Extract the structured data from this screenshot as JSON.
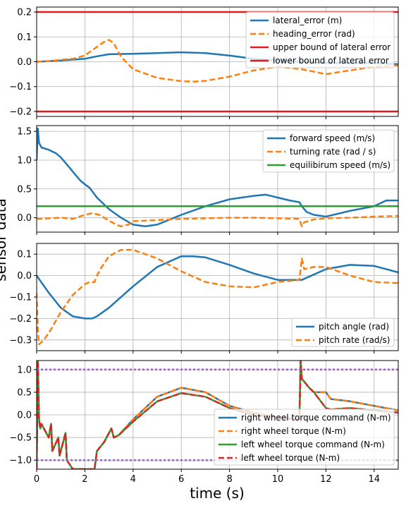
{
  "figure": {
    "xlabel": "time (s)",
    "ylabel": "sensor data"
  },
  "chart_data": [
    {
      "type": "line",
      "xlim": [
        0,
        15
      ],
      "ylim": [
        -0.22,
        0.22
      ],
      "xticks": [
        0,
        2,
        4,
        6,
        8,
        10,
        12,
        14
      ],
      "yticks": [
        -0.2,
        -0.1,
        0.0,
        0.1,
        0.2
      ],
      "ytick_labels": [
        "−0.2",
        "−0.1",
        "0.0",
        "0.1",
        "0.2"
      ],
      "grid": true,
      "legend_position": "top-right",
      "series": [
        {
          "name": "lateral_error (m)",
          "color": "#1f77b4",
          "dash": "solid",
          "x": [
            0,
            1,
            2,
            2.5,
            3,
            4,
            5,
            6,
            7,
            8,
            9,
            10,
            11,
            12,
            13,
            14,
            15
          ],
          "y": [
            0,
            0.005,
            0.012,
            0.022,
            0.03,
            0.032,
            0.035,
            0.038,
            0.035,
            0.025,
            0.012,
            0.005,
            0.0,
            -0.005,
            -0.005,
            -0.005,
            -0.01
          ]
        },
        {
          "name": "heading_error (rad)",
          "color": "#ff7f0e",
          "dash": "dashed",
          "x": [
            0,
            0.5,
            1,
            1.5,
            2,
            2.5,
            2.8,
            3,
            3.2,
            3.5,
            4,
            5,
            6,
            6.5,
            7,
            8,
            9,
            10,
            11,
            12,
            13,
            14,
            15
          ],
          "y": [
            0,
            0.002,
            0.008,
            0.012,
            0.025,
            0.06,
            0.08,
            0.088,
            0.075,
            0.02,
            -0.03,
            -0.065,
            -0.078,
            -0.08,
            -0.077,
            -0.06,
            -0.035,
            -0.02,
            -0.03,
            -0.05,
            -0.035,
            -0.02,
            -0.015
          ]
        },
        {
          "name": "upper bound of lateral error",
          "color": "#e31a1c",
          "dash": "solid",
          "x": [
            0,
            15
          ],
          "y": [
            0.2,
            0.2
          ]
        },
        {
          "name": "lower bound of lateral error",
          "color": "#e31a1c",
          "dash": "solid",
          "x": [
            0,
            15
          ],
          "y": [
            -0.2,
            -0.2
          ]
        }
      ]
    },
    {
      "type": "line",
      "xlim": [
        0,
        15
      ],
      "ylim": [
        -0.25,
        1.6
      ],
      "xticks": [
        0,
        2,
        4,
        6,
        8,
        10,
        12,
        14
      ],
      "yticks": [
        0.0,
        0.5,
        1.0,
        1.5
      ],
      "ytick_labels": [
        "0.0",
        "0.5",
        "1.0",
        "1.5"
      ],
      "grid": true,
      "legend_position": "top-right",
      "series": [
        {
          "name": "forward speed (m/s)",
          "color": "#1f77b4",
          "dash": "solid",
          "x": [
            0,
            0.05,
            0.1,
            0.2,
            0.5,
            0.8,
            1.0,
            1.3,
            1.5,
            1.8,
            2.0,
            2.2,
            2.5,
            3.0,
            3.5,
            4.0,
            4.5,
            5.0,
            6.0,
            7.0,
            8.0,
            9.0,
            9.5,
            10.0,
            10.5,
            10.9,
            11.0,
            11.2,
            11.5,
            12.0,
            13.0,
            14.0,
            14.5,
            15.0
          ],
          "y": [
            1.0,
            1.55,
            1.3,
            1.22,
            1.18,
            1.12,
            1.05,
            0.9,
            0.8,
            0.65,
            0.58,
            0.52,
            0.35,
            0.15,
            0.0,
            -0.12,
            -0.15,
            -0.12,
            0.05,
            0.2,
            0.32,
            0.38,
            0.4,
            0.35,
            0.3,
            0.27,
            0.2,
            0.1,
            0.05,
            0.02,
            0.12,
            0.2,
            0.3,
            0.3
          ]
        },
        {
          "name": "turning rate (rad / s)",
          "color": "#ff7f0e",
          "dash": "dashed",
          "x": [
            0,
            0.5,
            1.0,
            1.5,
            2.0,
            2.3,
            2.6,
            3.0,
            3.3,
            3.5,
            3.8,
            4.0,
            5.0,
            6.0,
            7.0,
            8.0,
            9.0,
            10.0,
            10.9,
            11.0,
            11.1,
            11.5,
            12.0,
            13.0,
            14.0,
            15.0
          ],
          "y": [
            -0.02,
            -0.01,
            0.0,
            -0.02,
            0.05,
            0.08,
            0.05,
            -0.05,
            -0.12,
            -0.15,
            -0.12,
            -0.06,
            -0.04,
            -0.02,
            -0.01,
            0.0,
            0.0,
            -0.01,
            -0.02,
            -0.15,
            -0.08,
            -0.03,
            -0.01,
            0.0,
            0.02,
            0.03
          ]
        },
        {
          "name": "equilibirum speed (m/s)",
          "color": "#2ca02c",
          "dash": "solid",
          "x": [
            0,
            15
          ],
          "y": [
            0.2,
            0.2
          ]
        }
      ]
    },
    {
      "type": "line",
      "xlim": [
        0,
        15
      ],
      "ylim": [
        -0.35,
        0.15
      ],
      "xticks": [
        0,
        2,
        4,
        6,
        8,
        10,
        12,
        14
      ],
      "yticks": [
        -0.3,
        -0.2,
        -0.1,
        0.0,
        0.1
      ],
      "ytick_labels": [
        "−0.3",
        "−0.2",
        "−0.1",
        "0.0",
        "0.1"
      ],
      "grid": true,
      "legend_position": "bottom-right",
      "series": [
        {
          "name": "pitch angle (rad)",
          "color": "#1f77b4",
          "dash": "solid",
          "x": [
            0,
            0.5,
            1.0,
            1.5,
            2.0,
            2.3,
            2.5,
            3.0,
            4.0,
            5.0,
            6.0,
            6.5,
            7.0,
            8.0,
            9.0,
            10.0,
            11.0,
            12.0,
            13.0,
            14.0,
            15.0
          ],
          "y": [
            0,
            -0.08,
            -0.15,
            -0.19,
            -0.2,
            -0.2,
            -0.19,
            -0.15,
            -0.05,
            0.04,
            0.09,
            0.09,
            0.085,
            0.05,
            0.01,
            -0.02,
            -0.02,
            0.03,
            0.05,
            0.045,
            0.015
          ]
        },
        {
          "name": "pitch rate (rad/s)",
          "color": "#ff7f0e",
          "dash": "dashed",
          "x": [
            0,
            0.05,
            0.1,
            0.3,
            0.6,
            1.0,
            1.5,
            2.0,
            2.2,
            2.4,
            2.5,
            2.7,
            3.0,
            3.5,
            4.0,
            5.0,
            6.0,
            7.0,
            8.0,
            9.0,
            10.0,
            10.9,
            11.0,
            11.1,
            11.5,
            12.0,
            13.0,
            14.0,
            15.0
          ],
          "y": [
            -0.08,
            -0.25,
            -0.32,
            -0.3,
            -0.25,
            -0.17,
            -0.09,
            -0.04,
            -0.03,
            -0.03,
            0.0,
            0.04,
            0.09,
            0.12,
            0.12,
            0.08,
            0.02,
            -0.03,
            -0.05,
            -0.055,
            -0.03,
            -0.02,
            0.08,
            0.03,
            0.04,
            0.04,
            0.0,
            -0.03,
            -0.035
          ]
        }
      ]
    },
    {
      "type": "line",
      "xlim": [
        0,
        15
      ],
      "ylim": [
        -1.2,
        1.2
      ],
      "xticks": [
        0,
        2,
        4,
        6,
        8,
        10,
        12,
        14
      ],
      "xtick_labels": [
        "0",
        "2",
        "4",
        "6",
        "8",
        "10",
        "12",
        "14"
      ],
      "yticks": [
        -1.0,
        -0.5,
        0.0,
        0.5,
        1.0
      ],
      "ytick_labels": [
        "−1.0",
        "−0.5",
        "0.0",
        "0.5",
        "1.0"
      ],
      "grid": true,
      "legend_position": "bottom-right",
      "series": [
        {
          "name": "right wheel torque command (N-m)",
          "color": "#1f77b4",
          "dash": "solid",
          "x": [
            0,
            0.05,
            0.1,
            0.15,
            0.2,
            0.5,
            0.6,
            0.65,
            0.9,
            0.95,
            1.2,
            1.25,
            1.5,
            1.6,
            2.0,
            2.2,
            2.4,
            2.5,
            2.8,
            3.1,
            3.2,
            3.4,
            4.0,
            5.0,
            6.0,
            7.0,
            8.0,
            9.0,
            10.0,
            10.9,
            10.95,
            11.0,
            11.3,
            11.5,
            12.0,
            12.2,
            13.0,
            14.0,
            15.0
          ],
          "y": [
            -1.2,
            1.2,
            -0.1,
            -0.3,
            -0.2,
            -0.5,
            -0.2,
            -0.8,
            -0.5,
            -0.9,
            -0.4,
            -1.0,
            -1.2,
            -1.2,
            -1.2,
            -1.2,
            -1.2,
            -0.8,
            -0.6,
            -0.3,
            -0.5,
            -0.45,
            -0.1,
            0.4,
            0.6,
            0.5,
            0.2,
            0.05,
            -0.05,
            -0.1,
            1.2,
            0.8,
            0.6,
            0.5,
            0.5,
            0.35,
            0.3,
            0.2,
            0.1
          ]
        },
        {
          "name": "right wheel torque (N-m)",
          "color": "#ff7f0e",
          "dash": "dashed",
          "x": [
            0,
            0.05,
            0.1,
            0.15,
            0.2,
            0.5,
            0.6,
            0.65,
            0.9,
            0.95,
            1.2,
            1.25,
            1.5,
            1.6,
            2.0,
            2.2,
            2.4,
            2.5,
            2.8,
            3.1,
            3.2,
            3.4,
            4.0,
            5.0,
            6.0,
            7.0,
            8.0,
            9.0,
            10.0,
            10.9,
            10.95,
            11.0,
            11.3,
            11.5,
            12.0,
            12.2,
            13.0,
            14.0,
            15.0
          ],
          "y": [
            -1.2,
            1.2,
            -0.1,
            -0.3,
            -0.2,
            -0.5,
            -0.2,
            -0.8,
            -0.5,
            -0.9,
            -0.4,
            -1.0,
            -1.2,
            -1.2,
            -1.2,
            -1.2,
            -1.2,
            -0.8,
            -0.6,
            -0.3,
            -0.5,
            -0.45,
            -0.1,
            0.4,
            0.6,
            0.5,
            0.2,
            0.05,
            -0.05,
            -0.1,
            1.2,
            0.8,
            0.6,
            0.5,
            0.5,
            0.35,
            0.3,
            0.2,
            0.1
          ]
        },
        {
          "name": "left wheel torque command (N-m)",
          "color": "#2ca02c",
          "dash": "solid",
          "x": [
            0,
            0.05,
            0.1,
            0.15,
            0.2,
            0.5,
            0.6,
            0.65,
            0.9,
            0.95,
            1.2,
            1.25,
            1.5,
            1.6,
            2.0,
            2.2,
            2.4,
            2.5,
            2.8,
            3.1,
            3.2,
            3.4,
            4.0,
            5.0,
            6.0,
            7.0,
            8.0,
            9.0,
            10.0,
            10.9,
            10.95,
            11.0,
            11.3,
            11.5,
            12.0,
            12.2,
            13.0,
            14.0,
            15.0
          ],
          "y": [
            -1.2,
            1.2,
            -0.1,
            -0.3,
            -0.2,
            -0.5,
            -0.2,
            -0.8,
            -0.5,
            -0.9,
            -0.4,
            -1.0,
            -1.2,
            -1.2,
            -1.2,
            -1.2,
            -1.2,
            -0.8,
            -0.6,
            -0.3,
            -0.5,
            -0.45,
            -0.15,
            0.3,
            0.48,
            0.4,
            0.15,
            0.0,
            -0.05,
            -0.1,
            1.2,
            0.8,
            0.6,
            0.5,
            0.15,
            0.12,
            0.15,
            0.1,
            0.05
          ]
        },
        {
          "name": "left wheel torque (N-m)",
          "color": "#d62728",
          "dash": "dashed",
          "x": [
            0,
            0.05,
            0.1,
            0.15,
            0.2,
            0.5,
            0.6,
            0.65,
            0.9,
            0.95,
            1.2,
            1.25,
            1.5,
            1.6,
            2.0,
            2.2,
            2.4,
            2.5,
            2.8,
            3.1,
            3.2,
            3.4,
            4.0,
            5.0,
            6.0,
            7.0,
            8.0,
            9.0,
            10.0,
            10.9,
            10.95,
            11.0,
            11.3,
            11.5,
            12.0,
            12.2,
            13.0,
            14.0,
            15.0
          ],
          "y": [
            -1.2,
            1.2,
            -0.1,
            -0.3,
            -0.2,
            -0.5,
            -0.2,
            -0.8,
            -0.5,
            -0.9,
            -0.4,
            -1.0,
            -1.2,
            -1.2,
            -1.2,
            -1.2,
            -1.2,
            -0.8,
            -0.6,
            -0.3,
            -0.5,
            -0.45,
            -0.15,
            0.3,
            0.48,
            0.4,
            0.15,
            0.0,
            -0.05,
            -0.1,
            1.2,
            0.8,
            0.6,
            0.5,
            0.15,
            0.12,
            0.15,
            0.1,
            0.05
          ]
        },
        {
          "name": "",
          "color": "#9467bd",
          "dash": "dotted",
          "x": [
            0,
            15
          ],
          "y": [
            1.0,
            1.0
          ]
        },
        {
          "name": "",
          "color": "#9467bd",
          "dash": "dotted",
          "x": [
            0,
            15
          ],
          "y": [
            -1.0,
            -1.0
          ]
        }
      ]
    }
  ]
}
